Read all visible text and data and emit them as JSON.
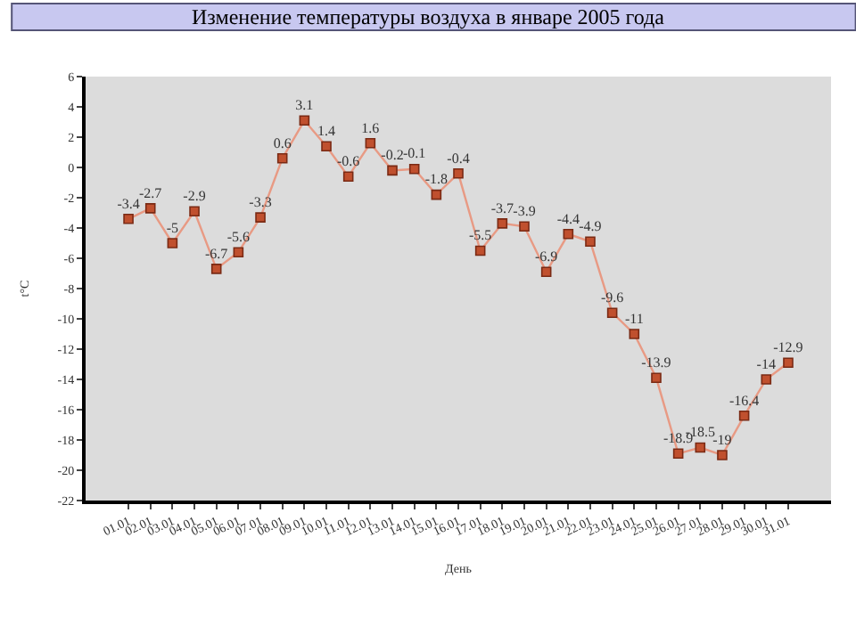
{
  "chart_data": {
    "type": "line",
    "title": "Изменение температуры воздуха в январе 2005 года",
    "xlabel": "День",
    "ylabel": "t°C",
    "categories": [
      "01.01",
      "02.01",
      "03.01",
      "04.01",
      "05.01",
      "06.01",
      "07.01",
      "08.01",
      "09.01",
      "10.01",
      "11.01",
      "12.01",
      "13.01",
      "14.01",
      "15.01",
      "16.01",
      "17.01",
      "18.01",
      "19.01",
      "20.01",
      "21.01",
      "22.01",
      "23.01",
      "24.01",
      "25.01",
      "26.01",
      "27.01",
      "28.01",
      "29.01",
      "30.01",
      "31.01"
    ],
    "series": [
      {
        "color": "#e89a84",
        "values": [
          -3.4,
          -2.7,
          -5,
          -2.9,
          -6.7,
          -5.6,
          -3.3,
          0.6,
          3.1,
          1.4,
          -0.6,
          1.6,
          -0.2,
          -0.1,
          -1.8,
          -0.4,
          -5.5,
          -3.7,
          -3.9,
          -6.9,
          -4.4,
          -4.9,
          -9.6,
          -11,
          -13.9,
          -18.9,
          -18.5,
          -19,
          -16.4,
          -14,
          -12.9
        ]
      }
    ],
    "ylim": [
      -22,
      6
    ],
    "yticks": [
      -22,
      -20,
      -18,
      -16,
      -14,
      -12,
      -10,
      -8,
      -6,
      -4,
      -2,
      0,
      2,
      4,
      6
    ],
    "marker": "square",
    "line_style": "solid",
    "data_labels": true,
    "grid": false,
    "legend": false
  }
}
